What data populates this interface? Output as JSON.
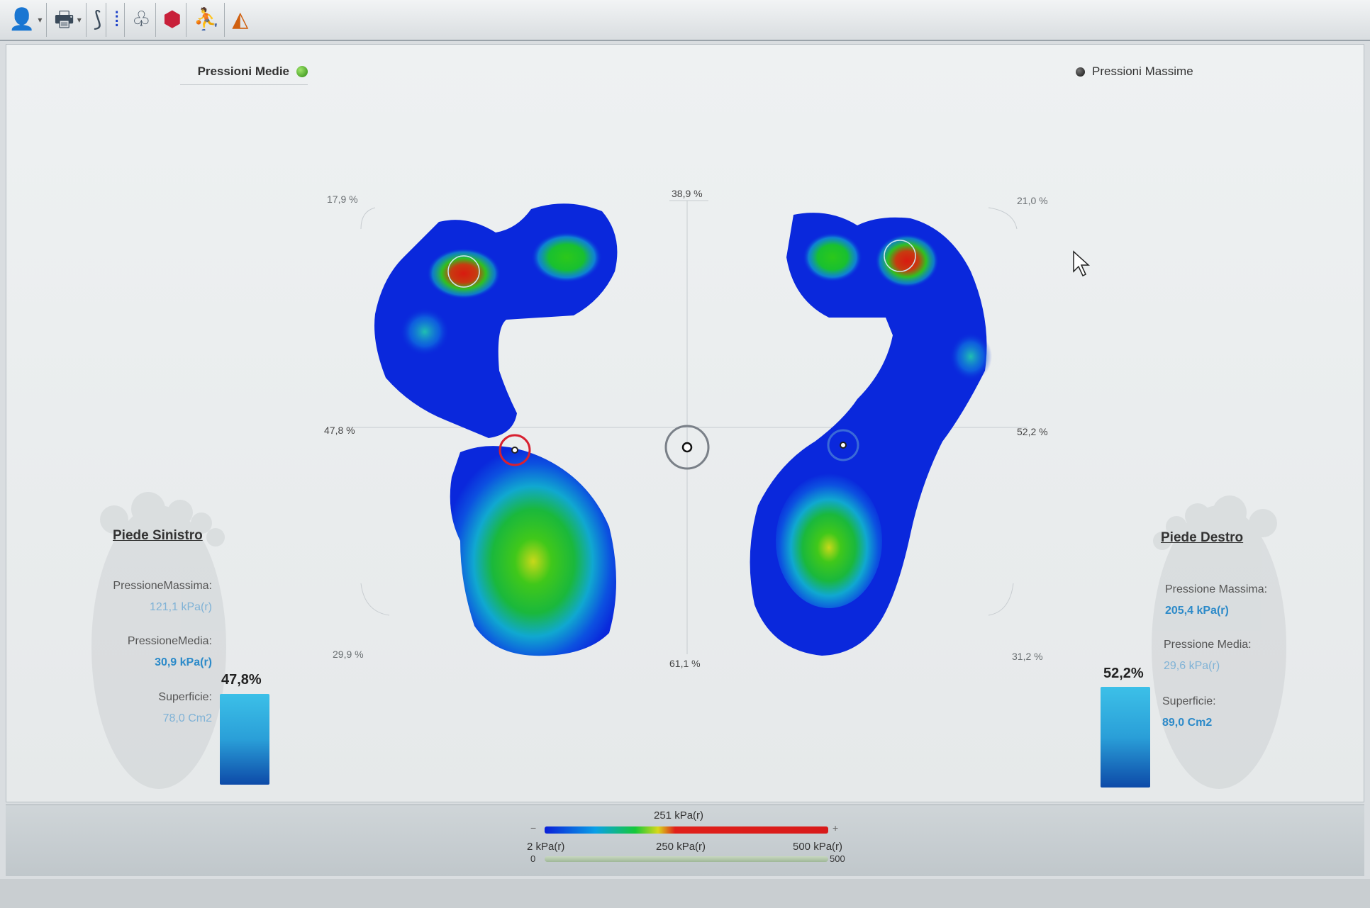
{
  "toolbar": {
    "buttons": [
      {
        "name": "patient-button",
        "icon": "user-icon",
        "glyph": "👤"
      },
      {
        "name": "print-button",
        "icon": "printer-icon",
        "glyph": "🖶"
      },
      {
        "name": "feet-view-button",
        "icon": "feet-outline-icon",
        "glyph": "⟆"
      },
      {
        "name": "feet-pressure-button",
        "icon": "feet-dots-icon",
        "glyph": "⁞"
      },
      {
        "name": "feet-ghost-button",
        "icon": "feet-shadow-icon",
        "glyph": "♧"
      },
      {
        "name": "target-button",
        "icon": "target-icon",
        "glyph": "⬢"
      },
      {
        "name": "posture-button",
        "icon": "posture-icon",
        "glyph": "⛹"
      },
      {
        "name": "shapes-button",
        "icon": "shapes-icon",
        "glyph": "◭"
      }
    ]
  },
  "legend": {
    "left_label": "Pressioni Medie",
    "right_label": "Pressioni Massime"
  },
  "percentages": {
    "top_left": "17,9 %",
    "top_center": "38,9 %",
    "top_right": "21,0 %",
    "mid_left": "47,8 %",
    "mid_right": "52,2 %",
    "bottom_left": "29,9 %",
    "bottom_center": "61,1 %",
    "bottom_right": "31,2 %"
  },
  "left_foot": {
    "title": "Piede Sinistro",
    "max_pressure_label": "PressioneMassima:",
    "max_pressure_value": "121,1 kPa(r)",
    "mean_pressure_label": "PressioneMedia:",
    "mean_pressure_value": "30,9 kPa(r)",
    "surface_label": "Superficie:",
    "surface_value": "78,0 Cm2",
    "load_percent": "47,8%"
  },
  "right_foot": {
    "title": "Piede Destro",
    "max_pressure_label": "Pressione Massima:",
    "max_pressure_value": "205,4 kPa(r)",
    "mean_pressure_label": "Pressione Media:",
    "mean_pressure_value": "29,6 kPa(r)",
    "surface_label": "Superficie:",
    "surface_value": "89,0 Cm2",
    "load_percent": "52,2%"
  },
  "scale": {
    "current": "251 kPa(r)",
    "min_symbol": "−",
    "max_symbol": "+",
    "low_label": "2 kPa(r)",
    "mid_label": "250 kPa(r)",
    "high_label": "500 kPa(r)",
    "range_min": "0",
    "range_max": "500"
  },
  "colors": {
    "low": "#0a1fd8",
    "mid": "#16c83a",
    "high": "#e0201a",
    "value_text": "#2c8ac9"
  }
}
